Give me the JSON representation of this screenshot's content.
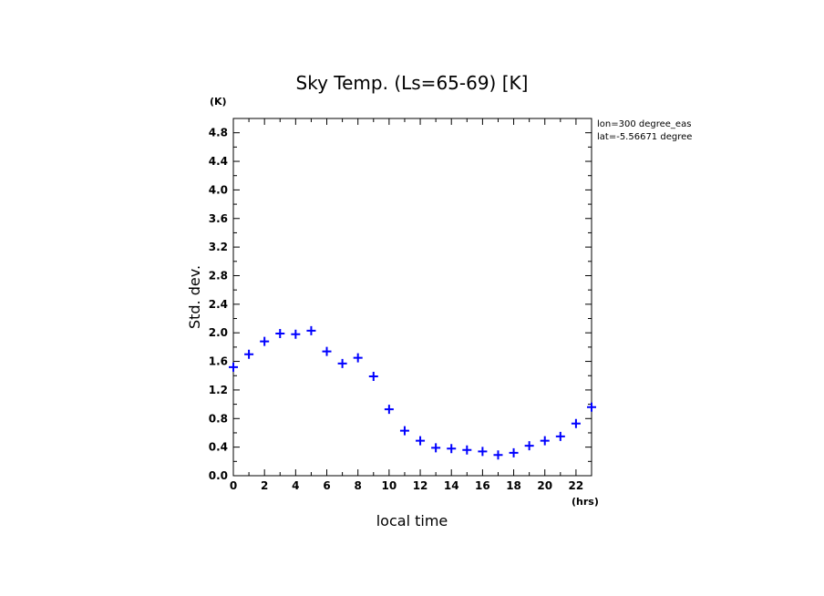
{
  "chart_data": {
    "type": "scatter",
    "title": "Sky Temp. (Ls=65-69) [K]",
    "xlabel": "local time",
    "ylabel": "Std. dev.",
    "x_unit": "(hrs)",
    "y_unit": "(K)",
    "xlim": [
      0,
      23
    ],
    "ylim": [
      0,
      5.0
    ],
    "x_ticks": [
      0,
      2,
      4,
      6,
      8,
      10,
      12,
      14,
      16,
      18,
      20,
      22
    ],
    "y_ticks": [
      0.0,
      0.4,
      0.8,
      1.2,
      1.6,
      2.0,
      2.4,
      2.8,
      3.2,
      3.6,
      4.0,
      4.4,
      4.8
    ],
    "y_tick_labels": [
      "0.0",
      "0.4",
      "0.8",
      "1.2",
      "1.6",
      "2.0",
      "2.4",
      "2.8",
      "3.2",
      "3.6",
      "4.0",
      "4.4",
      "4.8"
    ],
    "marker": "plus",
    "marker_color": "#0000ff",
    "x": [
      0,
      1,
      2,
      3,
      4,
      5,
      6,
      7,
      8,
      9,
      10,
      11,
      12,
      13,
      14,
      15,
      16,
      17,
      18,
      19,
      20,
      21,
      22,
      23
    ],
    "y": [
      1.52,
      1.7,
      1.88,
      1.99,
      1.98,
      2.03,
      1.74,
      1.57,
      1.65,
      1.39,
      0.93,
      0.63,
      0.49,
      0.39,
      0.38,
      0.36,
      0.34,
      0.29,
      0.32,
      0.42,
      0.49,
      0.55,
      0.73,
      0.96
    ],
    "annotations": [
      "lon=300 degree_eas",
      "lat=-5.56671 degree"
    ],
    "grid": false
  }
}
